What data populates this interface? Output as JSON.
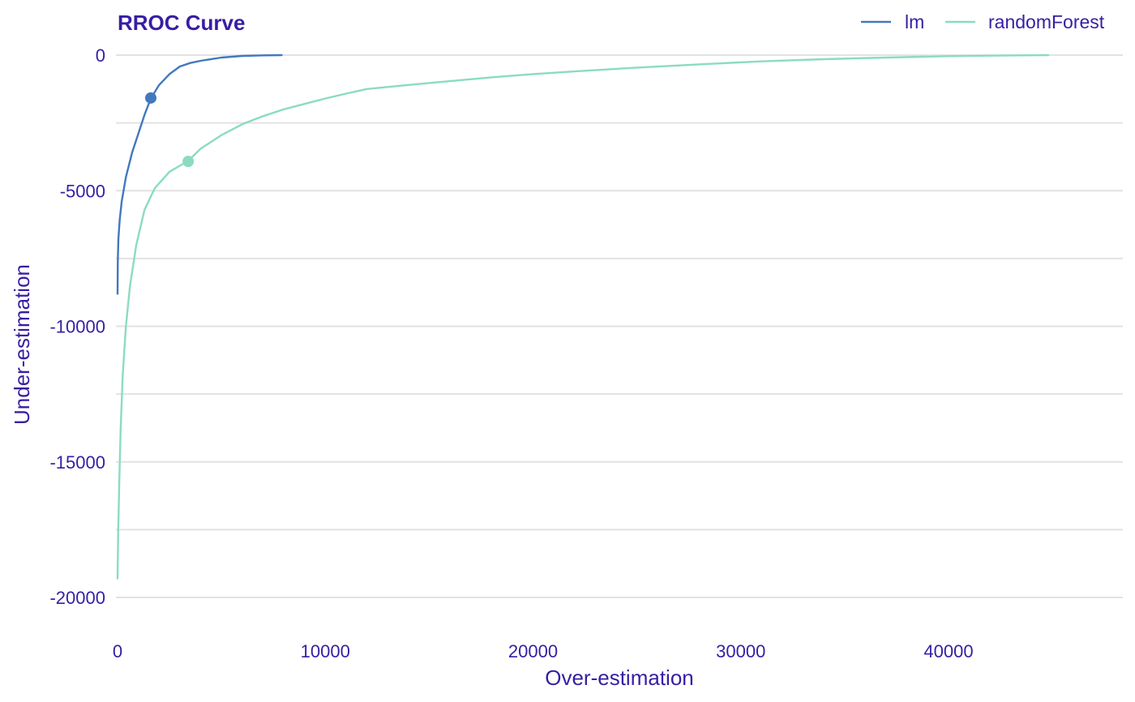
{
  "chart_data": {
    "type": "line",
    "title": "RROC Curve",
    "xlabel": "Over-estimation",
    "ylabel": "Under-estimation",
    "xlim": [
      0,
      48500
    ],
    "ylim": [
      -21000,
      1500
    ],
    "x_ticks": [
      0,
      10000,
      20000,
      30000,
      40000
    ],
    "y_ticks": [
      0,
      -5000,
      -10000,
      -15000,
      -20000
    ],
    "x_tick_labels": [
      "0",
      "10000",
      "20000",
      "30000",
      "40000"
    ],
    "y_tick_labels": [
      "0",
      "-5000",
      "-10000",
      "-15000",
      "-20000"
    ],
    "grid": true,
    "legend_position": "top-right",
    "series": [
      {
        "name": "lm",
        "color": "#4378bf",
        "x": [
          0,
          10,
          40,
          100,
          200,
          400,
          700,
          1000,
          1300,
          1600,
          2000,
          2500,
          3000,
          3500,
          4000,
          5000,
          6000,
          7000,
          7900
        ],
        "y": [
          -8800,
          -7600,
          -6800,
          -6100,
          -5400,
          -4500,
          -3600,
          -2900,
          -2200,
          -1600,
          -1100,
          -700,
          -420,
          -290,
          -210,
          -90,
          -30,
          -10,
          0
        ],
        "point": {
          "x": 1600,
          "y": -1580
        }
      },
      {
        "name": "randomForest",
        "color": "#8bdcbe",
        "x": [
          0,
          30,
          80,
          150,
          250,
          400,
          600,
          900,
          1300,
          1800,
          2500,
          3400,
          4000,
          5000,
          6000,
          7000,
          8000,
          9000,
          10000,
          11000,
          12000,
          14000,
          16000,
          18000,
          20000,
          22000,
          25000,
          28000,
          31000,
          34000,
          37000,
          40000,
          42000,
          44000,
          44800
        ],
        "y": [
          -19300,
          -17600,
          -15800,
          -13800,
          -11800,
          -10000,
          -8500,
          -7000,
          -5700,
          -4900,
          -4300,
          -3900,
          -3450,
          -2950,
          -2550,
          -2250,
          -2000,
          -1800,
          -1600,
          -1420,
          -1250,
          -1100,
          -960,
          -820,
          -700,
          -600,
          -460,
          -340,
          -230,
          -150,
          -90,
          -40,
          -20,
          -5,
          0
        ],
        "point": {
          "x": 3400,
          "y": -3920
        }
      }
    ]
  }
}
